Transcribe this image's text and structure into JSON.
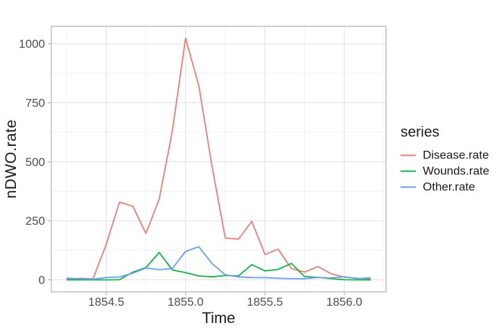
{
  "figure": {
    "x_axis_title": "Time",
    "y_axis_title": "nDWO.rate"
  },
  "colors": {
    "disease": "#F8766D",
    "wounds": "#00BA38",
    "other": "#619CFF",
    "panel_border": "#b3b3b3",
    "grid_major": "#e4e4e4",
    "grid_minor": "#f1f1f1",
    "tick_mark": "#b3b3b3",
    "axis_text": "#4d4d4d",
    "title_text": "#1a1a1a",
    "panel_background": "#ffffff"
  },
  "chart_data": {
    "type": "line",
    "title": "",
    "xlabel": "Time",
    "ylabel": "nDWO.rate",
    "grid": true,
    "legend_position": "right",
    "x": [
      1854.25,
      1854.3333,
      1854.4167,
      1854.5,
      1854.5833,
      1854.6667,
      1854.75,
      1854.8333,
      1854.9167,
      1855.0,
      1855.0833,
      1855.1667,
      1855.25,
      1855.3333,
      1855.4167,
      1855.5,
      1855.5833,
      1855.6667,
      1855.75,
      1855.8333,
      1855.9167,
      1856.0,
      1856.0833,
      1856.1667
    ],
    "series": [
      {
        "name": "Disease.rate",
        "color": "#F8766D",
        "values": [
          1.4,
          6.2,
          4.7,
          150.0,
          328.5,
          312.2,
          197.0,
          340.6,
          631.5,
          1022.8,
          822.8,
          480.3,
          177.5,
          171.8,
          247.6,
          107.5,
          129.9,
          47.5,
          32.8,
          56.4,
          25.3,
          11.4,
          6.6,
          3.9
        ]
      },
      {
        "name": "Wounds.rate",
        "color": "#00BA38",
        "values": [
          0.0,
          0.0,
          0.0,
          0.0,
          0.4,
          32.1,
          51.7,
          115.8,
          41.7,
          30.7,
          16.3,
          12.8,
          17.9,
          16.6,
          64.5,
          37.7,
          44.1,
          69.4,
          13.6,
          10.5,
          5.0,
          0.5,
          0.0,
          0.0
        ]
      },
      {
        "name": "Other.rate",
        "color": "#619CFF",
        "values": [
          7.0,
          4.6,
          2.5,
          9.6,
          11.9,
          27.7,
          50.1,
          42.8,
          48.0,
          120.0,
          140.1,
          68.6,
          21.2,
          12.5,
          9.6,
          9.3,
          6.7,
          5.0,
          4.6,
          10.1,
          7.8,
          13.0,
          5.2,
          9.1
        ]
      }
    ],
    "x_ticks": {
      "values": [
        1854.5,
        1855.0,
        1855.5,
        1856.0
      ],
      "labels": [
        "1854.5",
        "1855.0",
        "1855.5",
        "1856.0"
      ]
    },
    "x_minor_ticks": [
      1854.25,
      1854.75,
      1855.25,
      1855.75,
      1856.25
    ],
    "y_ticks": {
      "values": [
        0,
        250,
        500,
        750,
        1000
      ],
      "labels": [
        "0",
        "250",
        "500",
        "750",
        "1000"
      ]
    },
    "y_minor_ticks": [
      125,
      375,
      625,
      875
    ],
    "xlim": [
      1854.154,
      1856.263
    ],
    "ylim": [
      -51.1,
      1073.9
    ],
    "legend": {
      "title": "series",
      "entries": [
        "Disease.rate",
        "Wounds.rate",
        "Other.rate"
      ]
    }
  }
}
